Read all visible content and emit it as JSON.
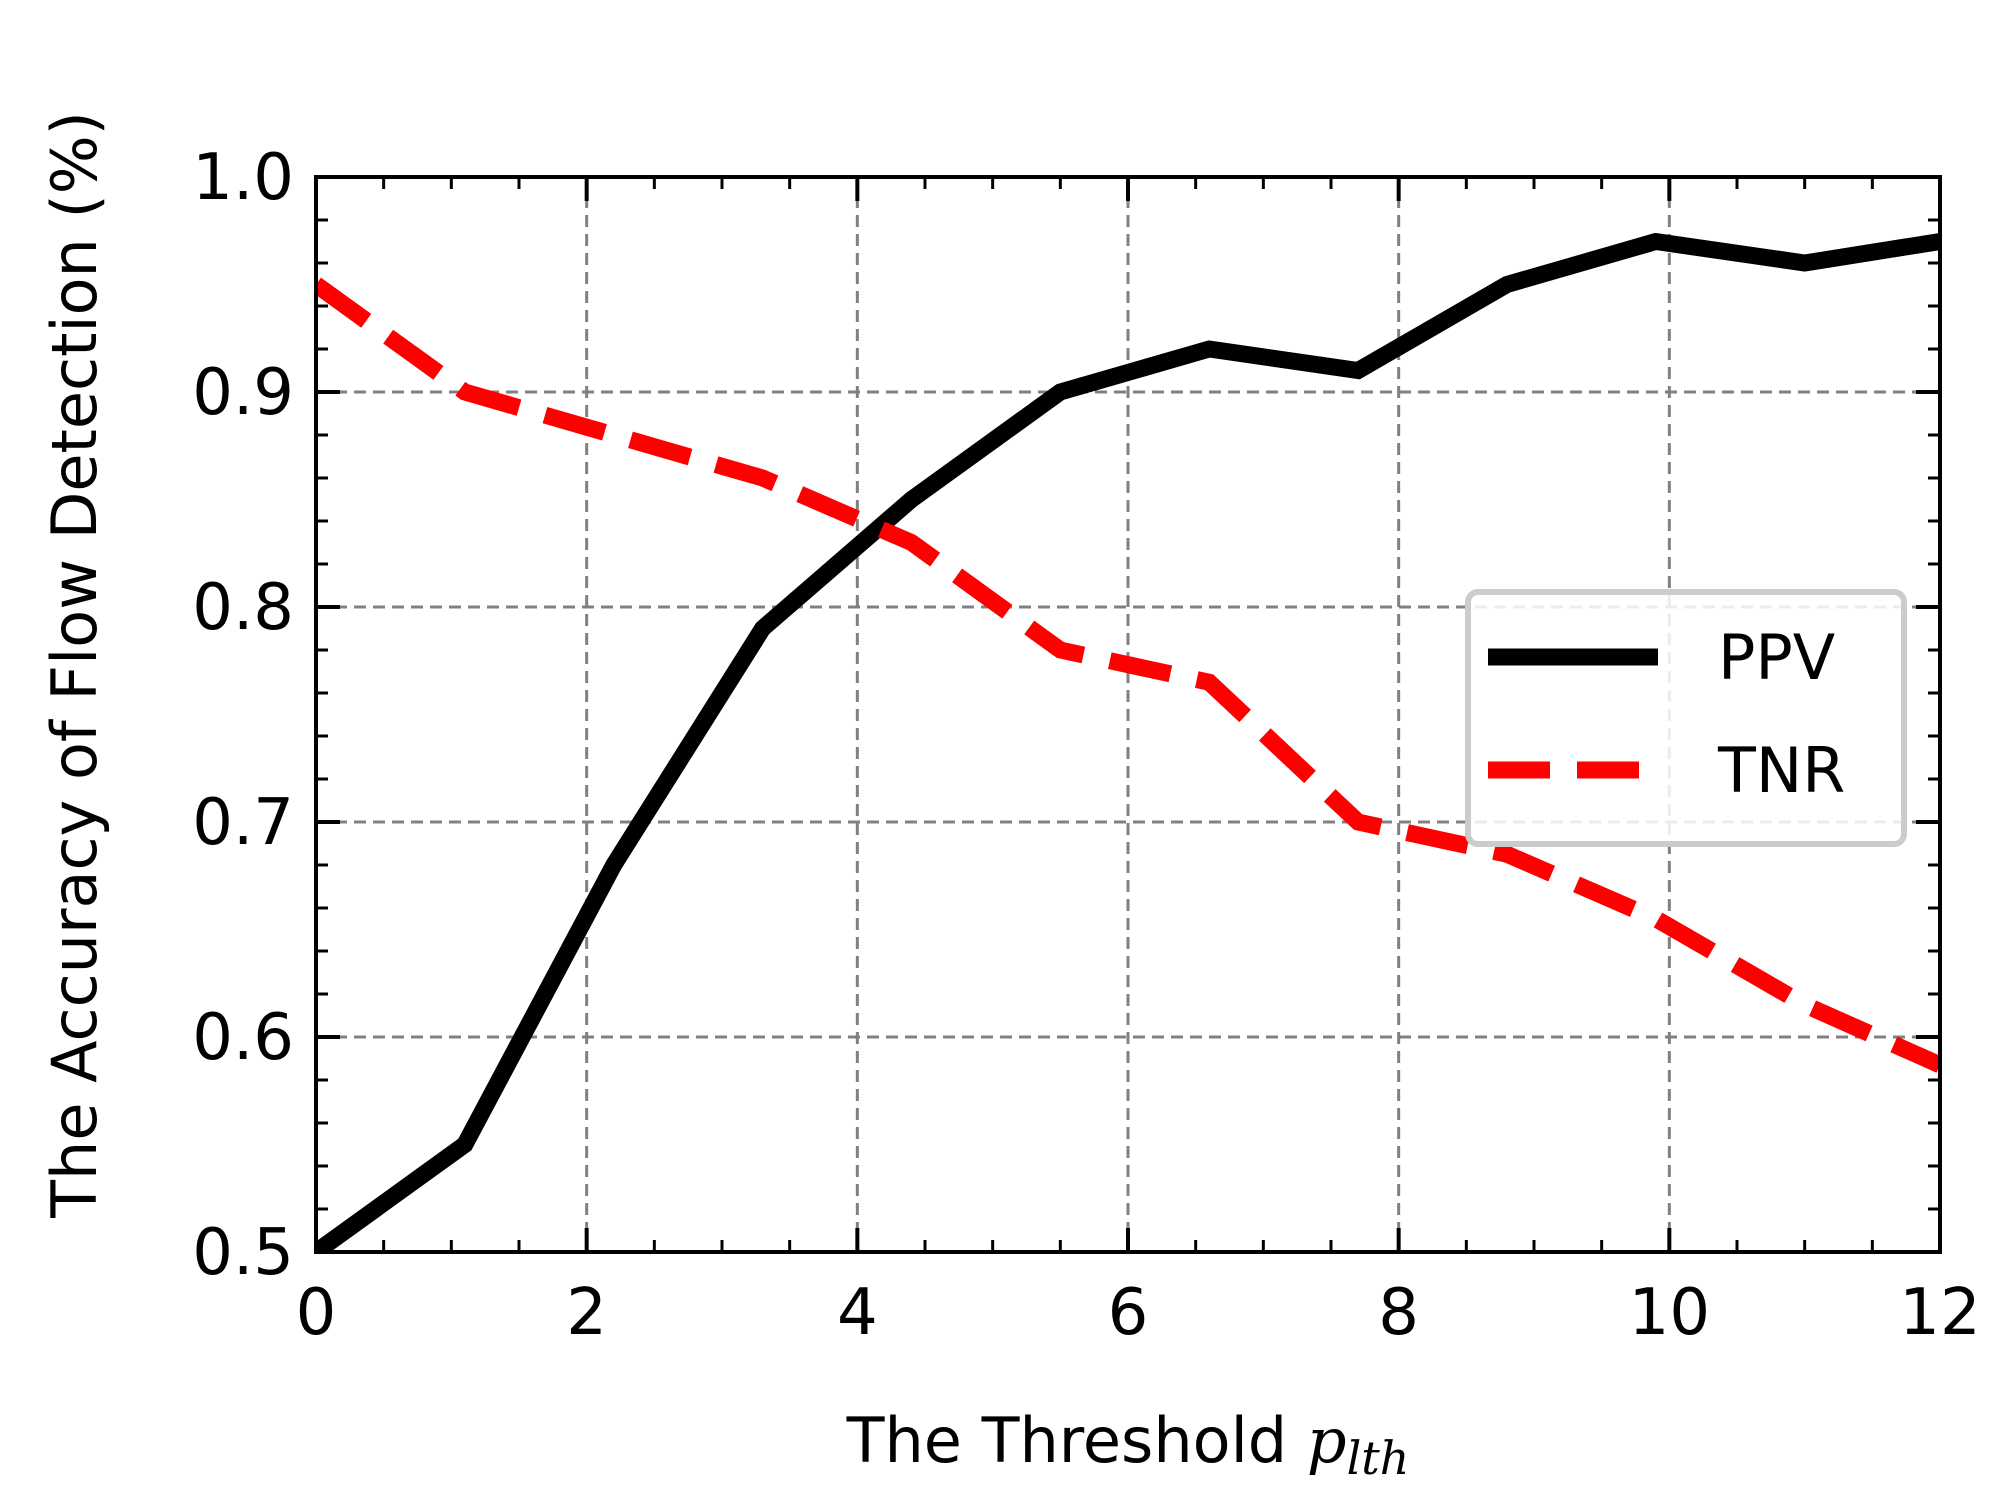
{
  "chart_data": {
    "type": "line",
    "title": "",
    "xlabel": "The Threshold ",
    "xlabel_math": "p",
    "xlabel_subscript": "lth",
    "ylabel": "The Accuracy of Flow Detection (%)",
    "xlim": [
      0,
      12
    ],
    "ylim": [
      0.5,
      1.0
    ],
    "xticks": [
      0,
      2,
      4,
      6,
      8,
      10,
      12
    ],
    "xtick_labels": [
      "0",
      "2",
      "4",
      "6",
      "8",
      "10",
      "12"
    ],
    "yticks": [
      0.5,
      0.6,
      0.7,
      0.8,
      0.9,
      1.0
    ],
    "ytick_labels": [
      "0.5",
      "0.6",
      "0.7",
      "0.8",
      "0.9",
      "1.0"
    ],
    "grid": true,
    "legend_position": "center-right",
    "series": [
      {
        "name": "PPV",
        "color": "#000000",
        "style": "solid",
        "x": [
          0,
          1.1,
          2.2,
          3.3,
          4.4,
          5.5,
          6.6,
          7.7,
          8.8,
          9.9,
          11.0,
          12.0
        ],
        "y": [
          0.5,
          0.55,
          0.68,
          0.79,
          0.85,
          0.9,
          0.92,
          0.91,
          0.95,
          0.97,
          0.96,
          0.97
        ]
      },
      {
        "name": "TNR",
        "color": "#ff0000",
        "style": "dashed",
        "x": [
          0,
          1.1,
          2.2,
          3.3,
          4.4,
          5.5,
          6.6,
          7.7,
          8.8,
          9.9,
          11.0,
          12.0
        ],
        "y": [
          0.95,
          0.9,
          0.88,
          0.86,
          0.83,
          0.78,
          0.765,
          0.7,
          0.685,
          0.655,
          0.615,
          0.587
        ]
      }
    ]
  }
}
